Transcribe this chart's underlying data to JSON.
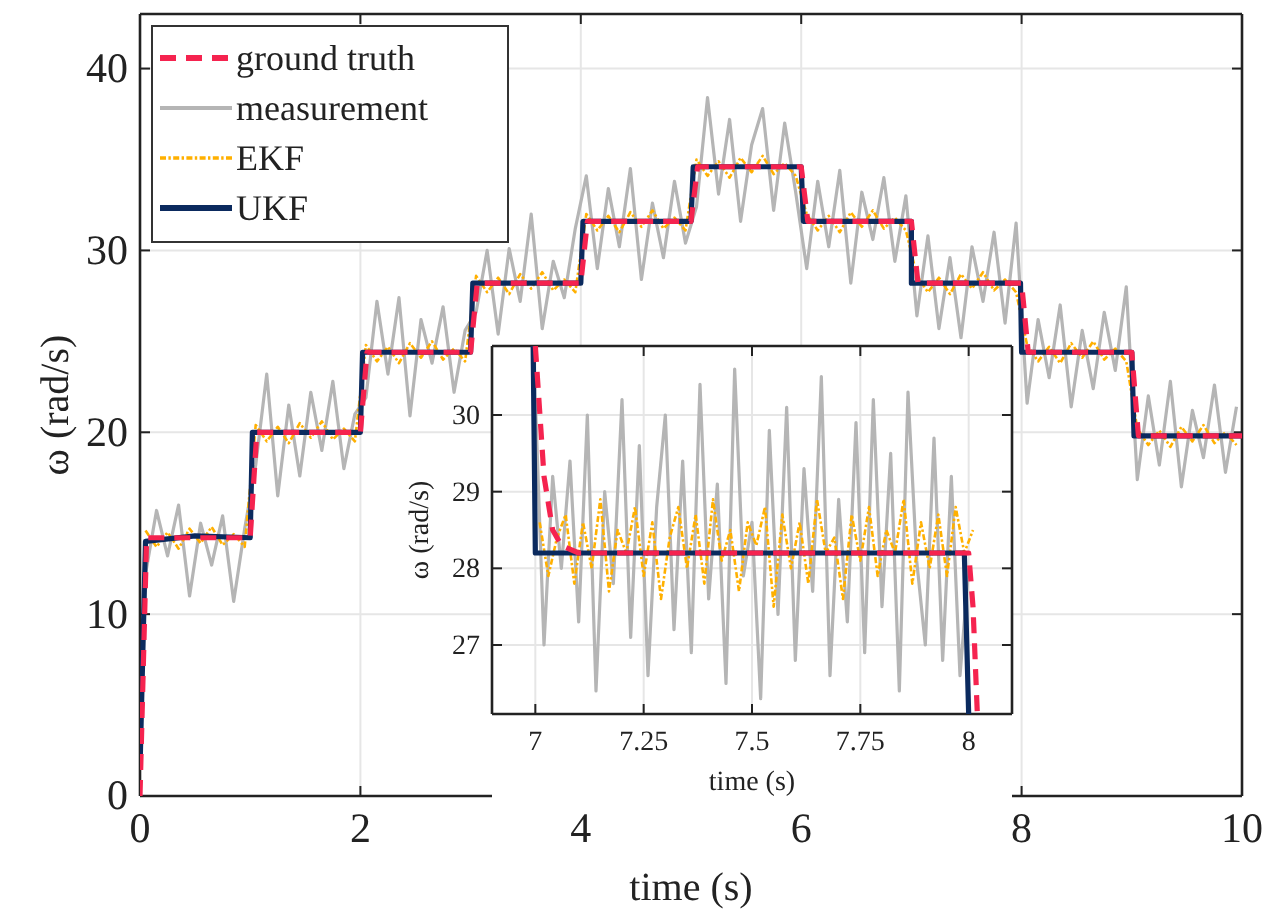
{
  "chart_data": [
    {
      "type": "line",
      "xlabel": "time (s)",
      "ylabel": "ω (rad/s)",
      "xlim": [
        0,
        10
      ],
      "xticks": [
        0,
        2,
        4,
        6,
        8,
        10
      ],
      "ylim": [
        0,
        43
      ],
      "yticks": [
        0,
        10,
        20,
        30,
        40
      ],
      "grid": true,
      "legend": "top left",
      "x": [
        0.05,
        0.15,
        0.25,
        0.35,
        0.45,
        0.55,
        0.65,
        0.75,
        0.85,
        0.95,
        1.05,
        1.15,
        1.25,
        1.35,
        1.45,
        1.55,
        1.65,
        1.75,
        1.85,
        1.95,
        2.05,
        2.15,
        2.25,
        2.35,
        2.45,
        2.55,
        2.65,
        2.75,
        2.85,
        2.95,
        3.05,
        3.15,
        3.25,
        3.35,
        3.45,
        3.55,
        3.65,
        3.75,
        3.85,
        3.95,
        4.05,
        4.15,
        4.25,
        4.35,
        4.45,
        4.55,
        4.65,
        4.75,
        4.85,
        4.95,
        5.05,
        5.15,
        5.25,
        5.35,
        5.45,
        5.55,
        5.65,
        5.75,
        5.85,
        5.95,
        6.05,
        6.15,
        6.25,
        6.35,
        6.45,
        6.55,
        6.65,
        6.75,
        6.85,
        6.95,
        7.05,
        7.15,
        7.25,
        7.35,
        7.45,
        7.55,
        7.65,
        7.75,
        7.85,
        7.95,
        8.05,
        8.15,
        8.25,
        8.35,
        8.45,
        8.55,
        8.65,
        8.75,
        8.85,
        8.95,
        9.05,
        9.15,
        9.25,
        9.35,
        9.45,
        9.55,
        9.65,
        9.75,
        9.85,
        9.95
      ],
      "series": [
        {
          "name": "ground truth",
          "color": "#f5234f",
          "line_style": "dashed",
          "x": [
            0,
            0.06,
            1,
            1.06,
            2,
            2.06,
            3,
            3.06,
            4,
            4.06,
            5,
            5.06,
            6,
            6.06,
            7,
            7.06,
            8,
            8.06,
            9,
            9.06,
            10
          ],
          "values": [
            0,
            14.2,
            14.2,
            20,
            20,
            24.4,
            24.4,
            28.2,
            28.2,
            31.6,
            31.6,
            34.6,
            34.6,
            31.6,
            31.6,
            28.2,
            28.2,
            24.4,
            24.4,
            19.8,
            19.8
          ]
        },
        {
          "name": "measurement",
          "color": "#b5b5b5",
          "line_style": "solid",
          "values": [
            12.2,
            15.7,
            13.2,
            16.0,
            11.0,
            15.0,
            12.7,
            15.4,
            10.7,
            14.7,
            18.2,
            23.2,
            16.5,
            21.5,
            17.6,
            22.2,
            19.0,
            22.8,
            18.0,
            21.0,
            21.9,
            27.2,
            23.2,
            27.4,
            20.9,
            26.2,
            23.8,
            26.9,
            22.2,
            25.6,
            26.6,
            30.0,
            25.4,
            30.1,
            27.2,
            32.0,
            25.7,
            29.4,
            27.4,
            31.2,
            34.1,
            29.0,
            33.4,
            30.2,
            34.5,
            28.4,
            32.6,
            29.6,
            33.8,
            30.4,
            32.4,
            38.4,
            33.1,
            37.2,
            31.6,
            35.8,
            37.8,
            32.2,
            37.0,
            33.2,
            29.0,
            33.8,
            30.2,
            34.4,
            28.2,
            33.2,
            30.6,
            34.0,
            29.4,
            33.0,
            26.4,
            30.8,
            25.7,
            29.6,
            25.2,
            30.2,
            27.2,
            31.0,
            26.0,
            31.5,
            21.6,
            26.2,
            23.0,
            27.0,
            21.4,
            25.6,
            22.4,
            26.6,
            23.4,
            28.0,
            17.4,
            22.0,
            18.2,
            22.8,
            17.0,
            21.2,
            18.6,
            22.6,
            17.8,
            21.4
          ]
        },
        {
          "name": "EKF",
          "color": "#ffb000",
          "line_style": "dashed",
          "values": [
            14.6,
            13.7,
            14.5,
            13.6,
            14.7,
            13.9,
            14.8,
            13.8,
            14.4,
            13.7,
            20.4,
            19.5,
            20.3,
            19.4,
            20.5,
            19.7,
            20.6,
            19.6,
            20.2,
            19.5,
            24.8,
            23.9,
            24.7,
            23.8,
            24.9,
            24.1,
            25.0,
            24.0,
            24.6,
            23.9,
            28.6,
            27.7,
            28.5,
            27.6,
            28.7,
            27.9,
            28.8,
            27.8,
            28.4,
            27.7,
            32.0,
            31.1,
            31.9,
            31.0,
            32.1,
            31.3,
            32.2,
            31.2,
            31.8,
            31.1,
            35.0,
            34.1,
            34.9,
            34.0,
            35.1,
            34.3,
            35.2,
            34.2,
            34.8,
            34.1,
            32.0,
            31.1,
            31.9,
            31.0,
            32.1,
            31.3,
            32.2,
            31.2,
            31.8,
            31.1,
            28.6,
            27.7,
            28.5,
            27.6,
            28.7,
            27.9,
            28.8,
            27.8,
            28.4,
            27.7,
            24.8,
            23.9,
            24.7,
            23.8,
            24.9,
            24.1,
            25.0,
            24.0,
            24.6,
            23.9,
            20.2,
            19.3,
            20.1,
            19.2,
            20.3,
            19.5,
            20.4,
            19.4,
            20.0,
            19.3
          ]
        },
        {
          "name": "UKF",
          "color": "#0b2a5e",
          "line_style": "solid",
          "x": [
            0,
            0.05,
            0.5,
            1,
            1.02,
            2,
            2.02,
            3,
            3.02,
            4,
            4.02,
            5,
            5.02,
            6,
            6.02,
            7,
            7.0,
            7.99,
            8.0,
            9,
            9.02,
            10
          ],
          "values": [
            1.5,
            14.0,
            14.3,
            14.2,
            20,
            20,
            24.4,
            24.4,
            28.2,
            28.2,
            31.6,
            31.6,
            34.6,
            34.6,
            31.6,
            31.6,
            28.2,
            28.2,
            24.4,
            24.4,
            19.8,
            19.8
          ]
        }
      ]
    },
    {
      "type": "line",
      "xlabel": "time (s)",
      "ylabel": "ω (rad/s)",
      "xlim": [
        6.9,
        8.1
      ],
      "xticks": [
        7,
        7.25,
        7.5,
        7.75,
        8
      ],
      "ylim": [
        26.1,
        30.9
      ],
      "yticks": [
        27,
        28,
        29,
        30
      ],
      "grid": true,
      "x": [
        7.0,
        7.02,
        7.04,
        7.06,
        7.08,
        7.1,
        7.12,
        7.14,
        7.16,
        7.18,
        7.2,
        7.22,
        7.24,
        7.26,
        7.28,
        7.3,
        7.32,
        7.34,
        7.36,
        7.38,
        7.4,
        7.42,
        7.44,
        7.46,
        7.48,
        7.5,
        7.52,
        7.54,
        7.56,
        7.58,
        7.6,
        7.62,
        7.64,
        7.66,
        7.68,
        7.7,
        7.72,
        7.74,
        7.76,
        7.78,
        7.8,
        7.82,
        7.84,
        7.86,
        7.88,
        7.9,
        7.92,
        7.94,
        7.96,
        7.98,
        8.0
      ],
      "series": [
        {
          "color": "#f5234f",
          "line_style": "dashed",
          "x": [
            7.0,
            7.02,
            7.04,
            7.06,
            7.1,
            8.0,
            8.01,
            8.02
          ],
          "values": [
            30.9,
            29.2,
            28.5,
            28.3,
            28.2,
            28.2,
            27.5,
            26.1
          ]
        },
        {
          "color": "#b5b5b5",
          "line_style": "solid",
          "values": [
            30.2,
            27.0,
            29.2,
            28.0,
            29.4,
            27.3,
            30.0,
            26.4,
            29.0,
            27.8,
            30.2,
            27.1,
            29.6,
            26.6,
            28.8,
            30.0,
            27.2,
            29.4,
            26.9,
            30.4,
            27.6,
            29.1,
            26.5,
            30.6,
            27.9,
            28.6,
            26.3,
            29.8,
            27.4,
            30.1,
            26.8,
            29.3,
            27.7,
            30.5,
            26.6,
            28.9,
            27.3,
            29.9,
            26.9,
            30.2,
            27.5,
            29.5,
            26.4,
            30.3,
            28.1,
            27.0,
            29.7,
            26.8,
            29.2,
            26.6,
            28.0
          ]
        },
        {
          "color": "#ffb000",
          "line_style": "dashed",
          "x": [
            7.01,
            7.03,
            7.05,
            7.07,
            7.09,
            7.11,
            7.13,
            7.15,
            7.17,
            7.19,
            7.21,
            7.23,
            7.25,
            7.27,
            7.29,
            7.31,
            7.33,
            7.35,
            7.37,
            7.39,
            7.41,
            7.43,
            7.45,
            7.47,
            7.49,
            7.51,
            7.53,
            7.55,
            7.57,
            7.59,
            7.61,
            7.63,
            7.65,
            7.67,
            7.69,
            7.71,
            7.73,
            7.75,
            7.77,
            7.79,
            7.81,
            7.83,
            7.85,
            7.87,
            7.89,
            7.91,
            7.93,
            7.95,
            7.97,
            7.99,
            8.01
          ],
          "values": [
            28.6,
            27.9,
            28.4,
            28.7,
            27.8,
            28.6,
            28.0,
            28.9,
            27.7,
            28.5,
            28.2,
            28.8,
            27.9,
            28.6,
            27.6,
            28.4,
            28.8,
            28.0,
            28.7,
            27.8,
            28.9,
            28.1,
            28.5,
            27.7,
            28.6,
            28.3,
            28.8,
            27.5,
            28.7,
            28.0,
            28.6,
            27.8,
            28.9,
            28.2,
            28.4,
            27.6,
            28.7,
            28.1,
            28.8,
            27.9,
            28.5,
            28.2,
            28.9,
            27.8,
            28.6,
            28.0,
            28.7,
            27.9,
            28.8,
            28.2,
            28.5
          ]
        },
        {
          "color": "#0b2a5e",
          "line_style": "solid",
          "x": [
            6.995,
            7.0,
            7.99,
            8.0
          ],
          "values": [
            30.9,
            28.2,
            28.2,
            26.1
          ]
        }
      ]
    }
  ]
}
